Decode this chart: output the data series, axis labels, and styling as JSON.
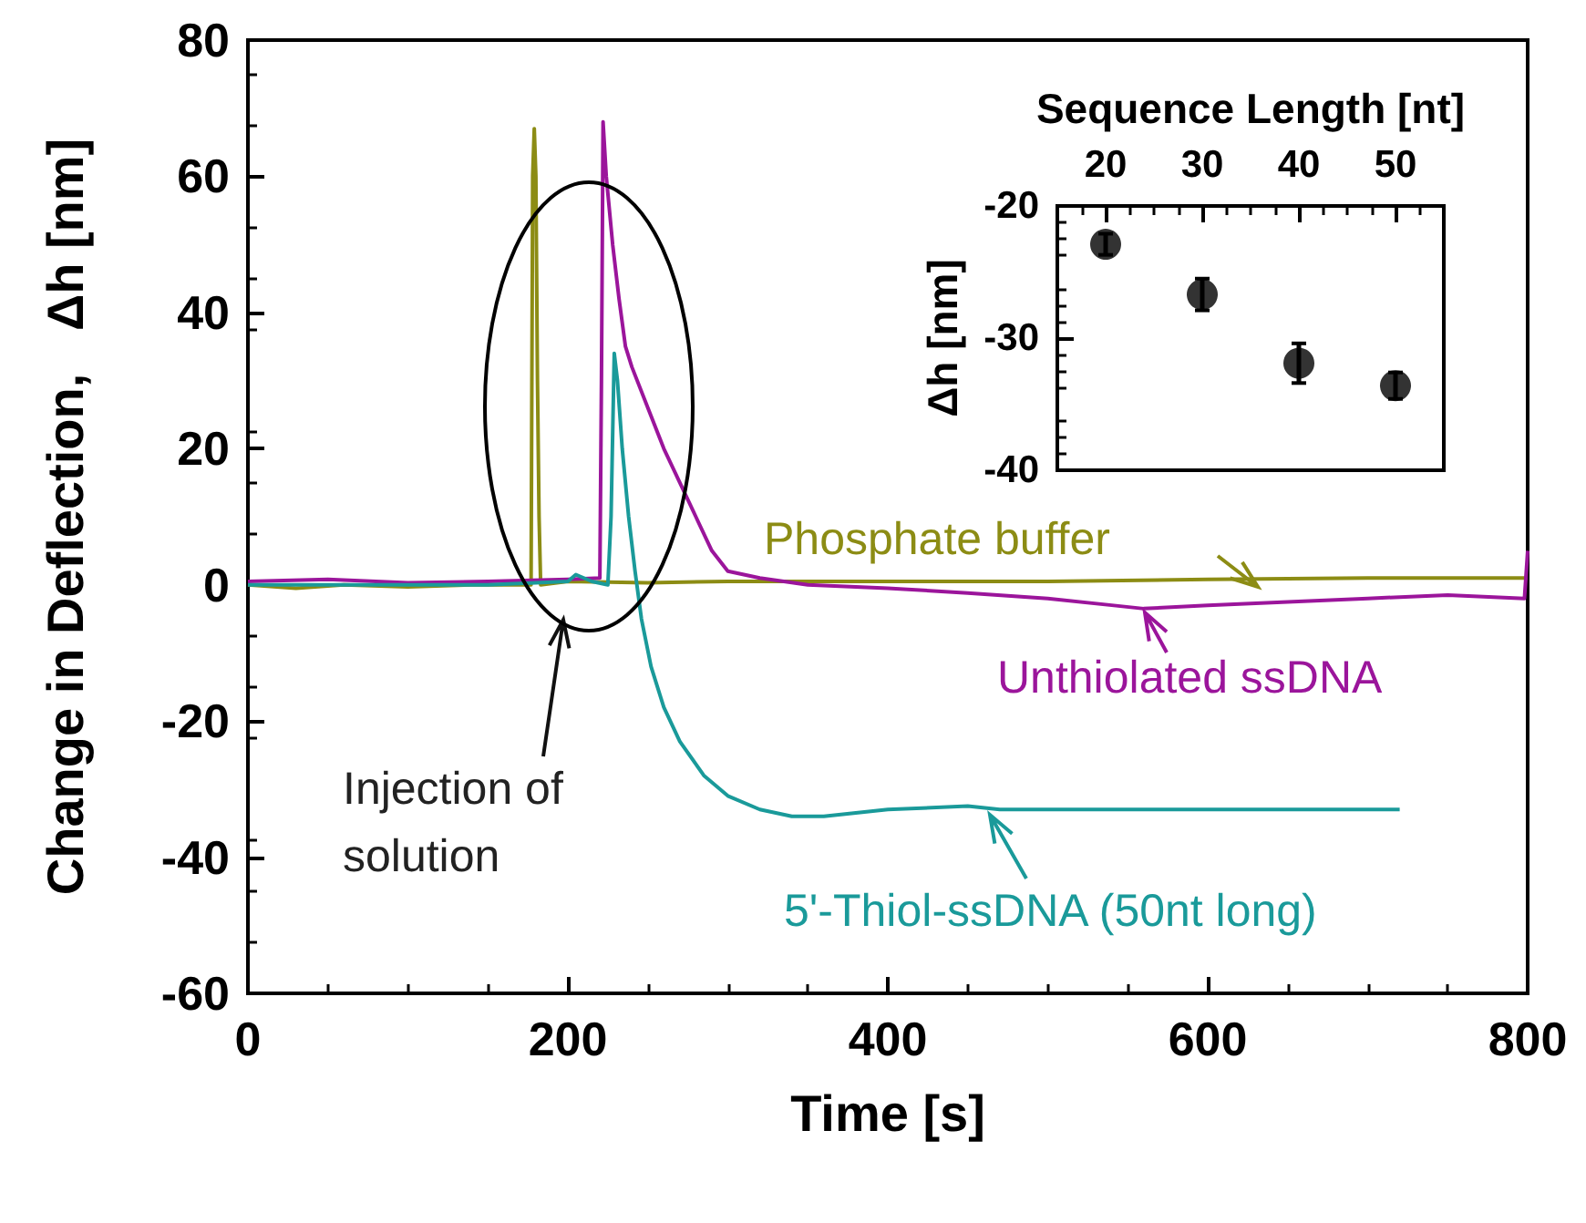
{
  "chart_data": [
    {
      "type": "line",
      "xlabel": "Time [s]",
      "ylabel": "Change in Deflection,   Δh [nm]",
      "xlim": [
        0,
        800
      ],
      "xticks": [
        0,
        200,
        400,
        600,
        800
      ],
      "ylim": [
        -60,
        80
      ],
      "yticks": [
        -60,
        -40,
        -20,
        0,
        20,
        40,
        60,
        80
      ],
      "grid": false,
      "legend": "right",
      "marker": "none",
      "line_style": "solid",
      "annotations": [
        "Injection of solution"
      ],
      "series": [
        {
          "name": "Phosphate buffer",
          "color": "#8c8c14",
          "x": [
            0,
            30,
            60,
            100,
            140,
            170,
            177,
            178,
            179,
            180,
            181,
            182,
            183,
            200,
            250,
            300,
            400,
            500,
            600,
            700,
            798,
            800
          ],
          "values": [
            0,
            -0.5,
            0,
            -0.3,
            0,
            0,
            0,
            60,
            67,
            60,
            30,
            10,
            0,
            0.5,
            0.3,
            0.5,
            0.5,
            0.5,
            0.8,
            1,
            1,
            1
          ]
        },
        {
          "name": "Unthiolated ssDNA",
          "color": "#9b159b",
          "x": [
            0,
            50,
            100,
            150,
            200,
            220,
            221,
            222,
            224,
            228,
            232,
            236,
            240,
            250,
            260,
            270,
            280,
            290,
            300,
            320,
            350,
            400,
            450,
            500,
            540,
            560,
            600,
            650,
            700,
            750,
            798,
            800
          ],
          "values": [
            0.5,
            0.8,
            0.3,
            0.5,
            0.8,
            1,
            30,
            68,
            60,
            50,
            42,
            35,
            32,
            26,
            20,
            15,
            10,
            5,
            2,
            1,
            0,
            -0.5,
            -1.2,
            -2,
            -3,
            -3.5,
            -3,
            -2.5,
            -2,
            -1.5,
            -2,
            5
          ]
        },
        {
          "name": "5'-Thiol-ssDNA (50nt long)",
          "color": "#1a9a9a",
          "x": [
            0,
            50,
            100,
            150,
            200,
            205,
            215,
            225,
            227,
            229,
            231,
            234,
            238,
            242,
            246,
            252,
            260,
            270,
            285,
            300,
            320,
            340,
            360,
            400,
            450,
            470,
            500,
            550,
            600,
            650,
            700,
            720
          ],
          "values": [
            0,
            0,
            0,
            0,
            0.5,
            1.5,
            0.5,
            0,
            10,
            34,
            30,
            20,
            10,
            2,
            -5,
            -12,
            -18,
            -23,
            -28,
            -31,
            -33,
            -34,
            -34,
            -33,
            -32.5,
            -33,
            -33,
            -33,
            -33,
            -33,
            -33,
            -33
          ]
        }
      ]
    },
    {
      "type": "scatter",
      "xlabel": "Sequence Length [nt]",
      "ylabel": "Δh [nm]",
      "xlim": [
        15,
        55
      ],
      "xticks": [
        20,
        30,
        40,
        50
      ],
      "ylim": [
        -40,
        -20
      ],
      "yticks": [
        -40,
        -30,
        -20
      ],
      "grid": false,
      "marker": "circle",
      "series": [
        {
          "color": "#000000",
          "x": [
            20,
            30,
            40,
            50
          ],
          "values": [
            -22.9,
            -26.7,
            -31.9,
            -33.6
          ],
          "errors": [
            0.8,
            1.2,
            1.5,
            1
          ]
        }
      ]
    }
  ]
}
